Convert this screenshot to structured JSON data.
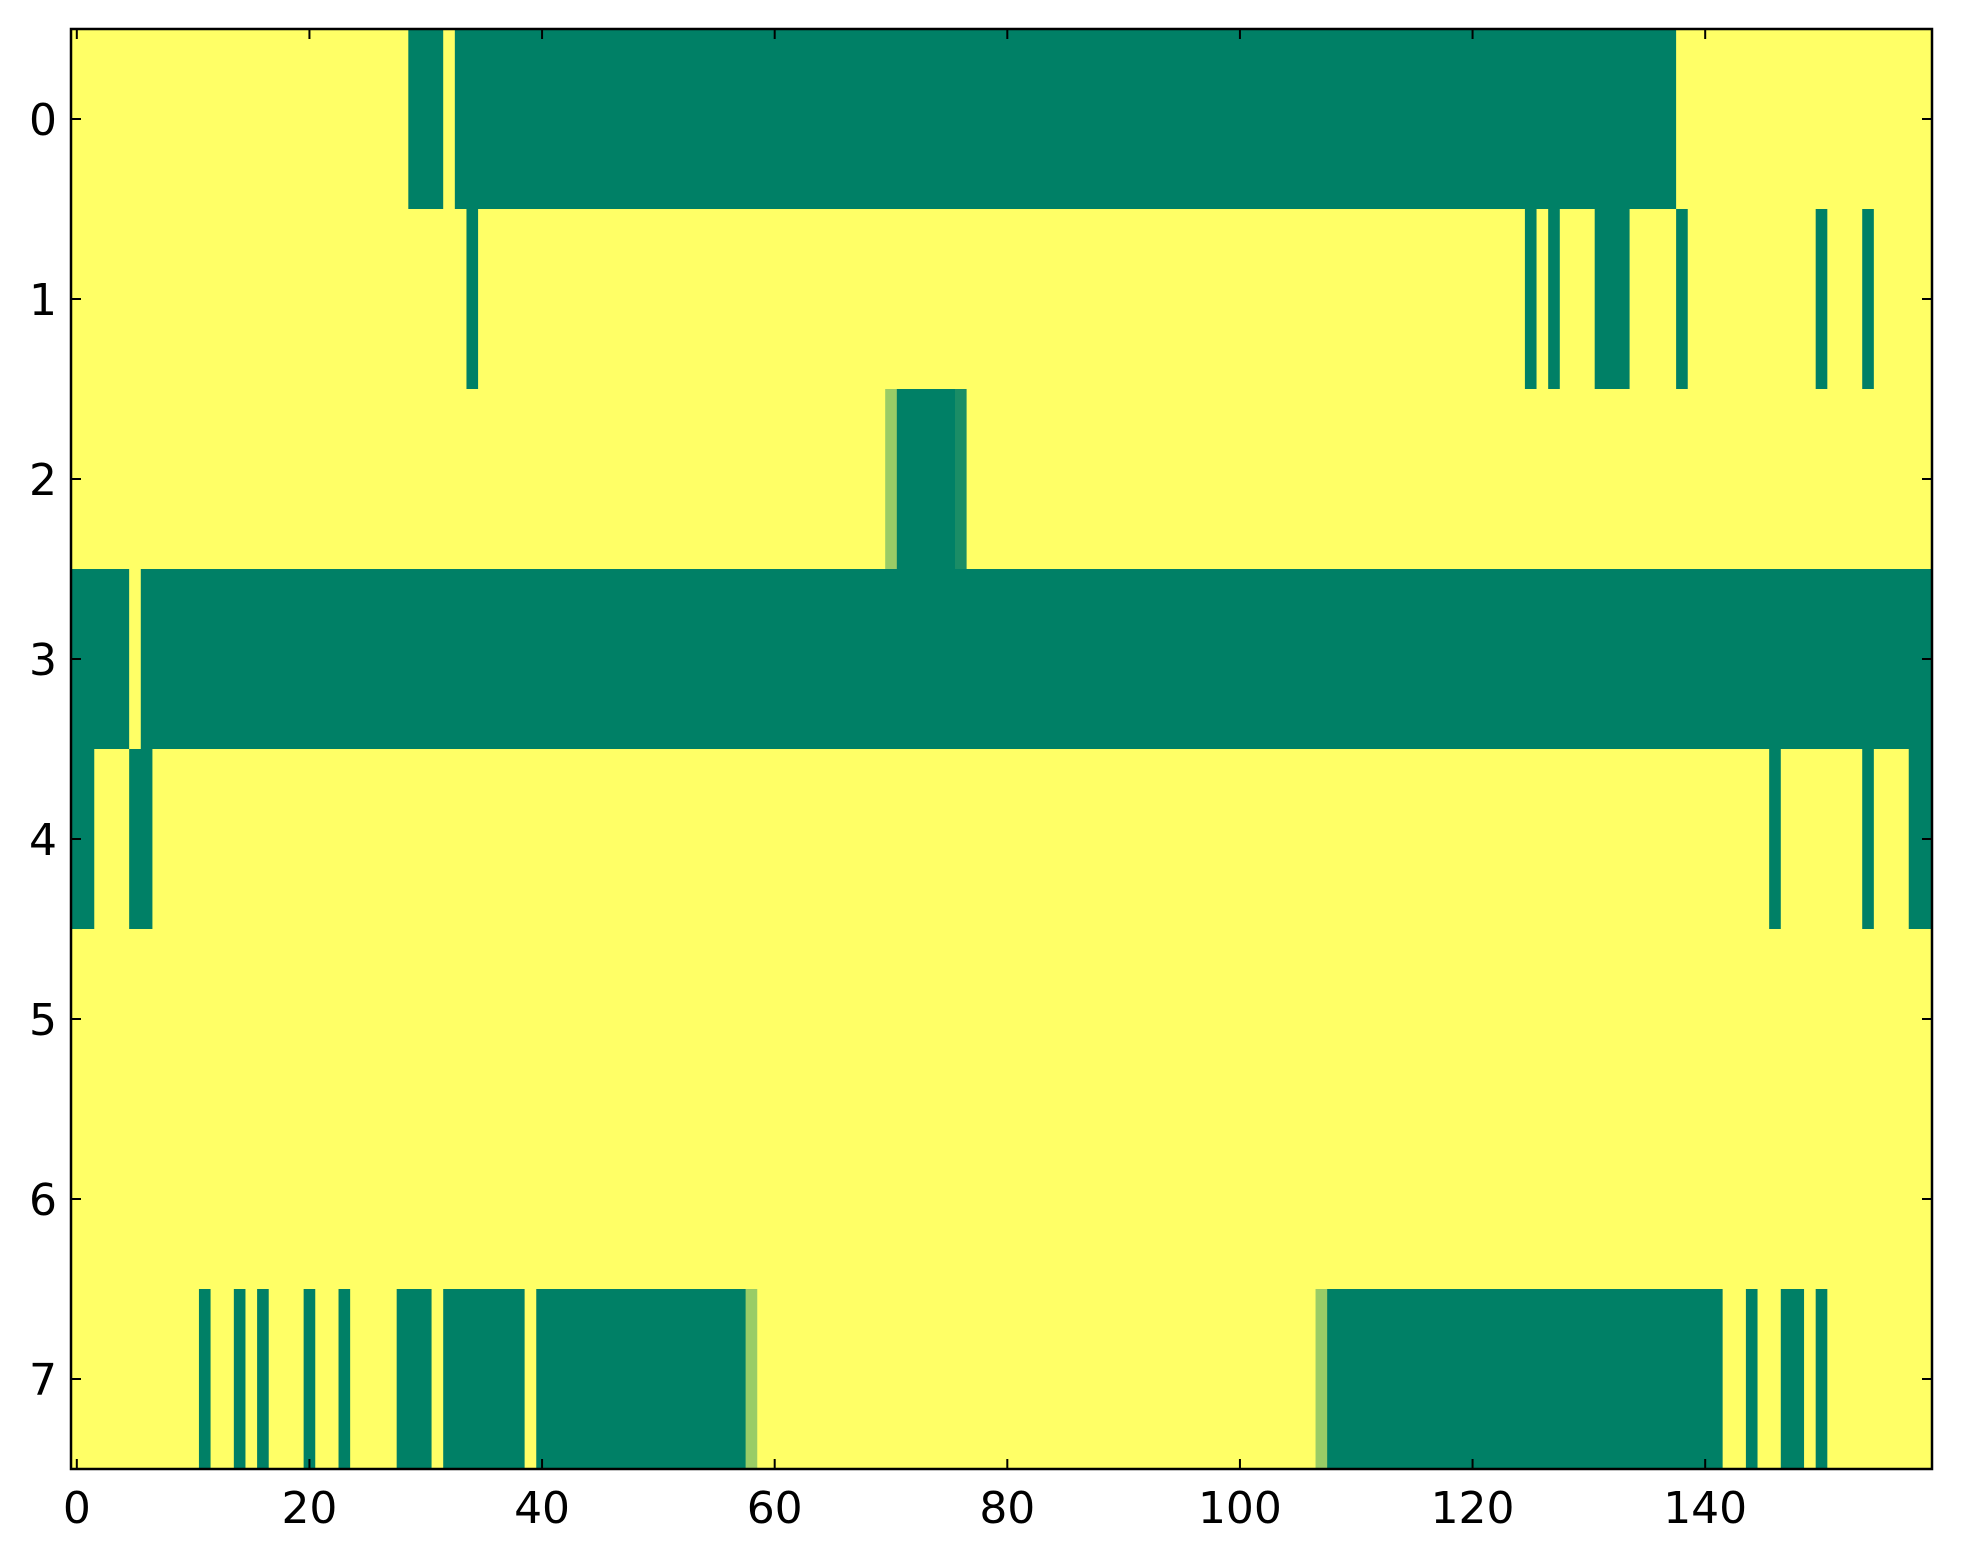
{
  "chart_data": {
    "type": "heatmap",
    "colormap": [
      "#ffff66",
      "#008066"
    ],
    "colorlim": [
      0,
      1
    ],
    "xlim": [
      -0.5,
      159.5
    ],
    "ylim": [
      7.5,
      -0.5
    ],
    "xticks": [
      0,
      20,
      40,
      60,
      80,
      100,
      120,
      140
    ],
    "yticks": [
      0,
      1,
      2,
      3,
      4,
      5,
      6,
      7
    ],
    "values": [
      [
        0,
        0,
        0,
        0,
        0,
        0,
        0,
        0,
        0,
        0,
        0,
        0,
        0,
        0,
        0,
        0,
        0,
        0,
        0,
        0,
        0,
        0,
        0,
        0,
        0,
        0,
        0,
        0,
        0,
        1,
        1,
        1,
        0,
        1,
        1,
        1,
        1,
        1,
        1,
        1,
        1,
        1,
        1,
        1,
        1,
        1,
        1,
        1,
        1,
        1,
        1,
        1,
        1,
        1,
        1,
        1,
        1,
        1,
        1,
        1,
        1,
        1,
        1,
        1,
        1,
        1,
        1,
        1,
        1,
        1,
        1,
        1,
        1,
        1,
        1,
        1,
        1,
        1,
        1,
        1,
        1,
        1,
        1,
        1,
        1,
        1,
        1,
        1,
        1,
        1,
        1,
        1,
        1,
        1,
        1,
        1,
        1,
        1,
        1,
        1,
        1,
        1,
        1,
        1,
        1,
        1,
        1,
        1,
        1,
        1,
        1,
        1,
        1,
        1,
        1,
        1,
        1,
        1,
        1,
        1,
        1,
        1,
        1,
        1,
        1,
        1,
        1,
        1,
        1,
        1,
        1,
        1,
        1,
        1,
        1,
        1,
        1,
        1,
        0,
        0,
        0,
        0,
        0,
        0,
        0,
        0,
        0,
        0,
        0,
        0,
        0,
        0,
        0,
        0,
        0,
        0,
        0,
        0,
        0,
        0
      ],
      [
        0,
        0,
        0,
        0,
        0,
        0,
        0,
        0,
        0,
        0,
        0,
        0,
        0,
        0,
        0,
        0,
        0,
        0,
        0,
        0,
        0,
        0,
        0,
        0,
        0,
        0,
        0,
        0,
        0,
        0,
        0,
        0,
        0,
        0,
        1,
        0,
        0,
        0,
        0,
        0,
        0,
        0,
        0,
        0,
        0,
        0,
        0,
        0,
        0,
        0,
        0,
        0,
        0,
        0,
        0,
        0,
        0,
        0,
        0,
        0,
        0,
        0,
        0,
        0,
        0,
        0,
        0,
        0,
        0,
        0,
        0,
        0,
        0,
        0,
        0,
        0,
        0,
        0,
        0,
        0,
        0,
        0,
        0,
        0,
        0,
        0,
        0,
        0,
        0,
        0,
        0,
        0,
        0,
        0,
        0,
        0,
        0,
        0,
        0,
        0,
        0,
        0,
        0,
        0,
        0,
        0,
        0,
        0,
        0,
        0,
        0,
        0,
        0,
        0,
        0,
        0,
        0,
        0,
        0,
        0,
        0,
        0,
        0,
        0,
        0,
        1,
        0,
        1,
        0,
        0,
        0,
        1,
        1,
        1,
        0,
        0,
        0,
        0,
        1,
        0,
        0,
        0,
        0,
        0,
        0,
        0,
        0,
        0,
        0,
        0,
        1,
        0,
        0,
        0,
        1,
        0,
        0,
        0,
        0,
        0
      ],
      [
        0,
        0,
        0,
        0,
        0,
        0,
        0,
        0,
        0,
        0,
        0,
        0,
        0,
        0,
        0,
        0,
        0,
        0,
        0,
        0,
        0,
        0,
        0,
        0,
        0,
        0,
        0,
        0,
        0,
        0,
        0,
        0,
        0,
        0,
        0,
        0,
        0,
        0,
        0,
        0,
        0,
        0,
        0,
        0,
        0,
        0,
        0,
        0,
        0,
        0,
        0,
        0,
        0,
        0,
        0,
        0,
        0,
        0,
        0,
        0,
        0,
        0,
        0,
        0,
        0,
        0,
        0,
        0,
        0,
        0,
        0.4,
        1,
        1,
        1,
        1,
        1,
        0.9,
        0,
        0,
        0,
        0,
        0,
        0,
        0,
        0,
        0,
        0,
        0,
        0,
        0,
        0,
        0,
        0,
        0,
        0,
        0,
        0,
        0,
        0,
        0,
        0,
        0,
        0,
        0,
        0,
        0,
        0,
        0,
        0,
        0,
        0,
        0,
        0,
        0,
        0,
        0,
        0,
        0,
        0,
        0,
        0,
        0,
        0,
        0,
        0,
        0,
        0,
        0,
        0,
        0,
        0,
        0,
        0,
        0,
        0,
        0,
        0,
        0,
        0,
        0,
        0,
        0,
        0,
        0,
        0,
        0,
        0,
        0,
        0,
        0,
        0,
        0,
        0,
        0,
        0,
        0,
        0,
        0,
        0,
        0
      ],
      [
        1,
        1,
        1,
        1,
        1,
        0,
        1,
        1,
        1,
        1,
        1,
        1,
        1,
        1,
        1,
        1,
        1,
        1,
        1,
        1,
        1,
        1,
        1,
        1,
        1,
        1,
        1,
        1,
        1,
        1,
        1,
        1,
        1,
        1,
        1,
        1,
        1,
        1,
        1,
        1,
        1,
        1,
        1,
        1,
        1,
        1,
        1,
        1,
        1,
        1,
        1,
        1,
        1,
        1,
        1,
        1,
        1,
        1,
        1,
        1,
        1,
        1,
        1,
        1,
        1,
        1,
        1,
        1,
        1,
        1,
        1,
        1,
        1,
        1,
        1,
        1,
        1,
        1,
        1,
        1,
        1,
        1,
        1,
        1,
        1,
        1,
        1,
        1,
        1,
        1,
        1,
        1,
        1,
        1,
        1,
        1,
        1,
        1,
        1,
        1,
        1,
        1,
        1,
        1,
        1,
        1,
        1,
        1,
        1,
        1,
        1,
        1,
        1,
        1,
        1,
        1,
        1,
        1,
        1,
        1,
        1,
        1,
        1,
        1,
        1,
        1,
        1,
        1,
        1,
        1,
        1,
        1,
        1,
        1,
        1,
        1,
        1,
        1,
        1,
        1,
        1,
        1,
        1,
        1,
        1,
        1,
        1,
        1,
        1,
        1,
        1,
        1,
        1,
        1,
        1,
        1,
        1,
        1,
        1,
        1
      ],
      [
        1,
        1,
        0,
        0,
        0,
        1,
        1,
        0,
        0,
        0,
        0,
        0,
        0,
        0,
        0,
        0,
        0,
        0,
        0,
        0,
        0,
        0,
        0,
        0,
        0,
        0,
        0,
        0,
        0,
        0,
        0,
        0,
        0,
        0,
        0,
        0,
        0,
        0,
        0,
        0,
        0,
        0,
        0,
        0,
        0,
        0,
        0,
        0,
        0,
        0,
        0,
        0,
        0,
        0,
        0,
        0,
        0,
        0,
        0,
        0,
        0,
        0,
        0,
        0,
        0,
        0,
        0,
        0,
        0,
        0,
        0,
        0,
        0,
        0,
        0,
        0,
        0,
        0,
        0,
        0,
        0,
        0,
        0,
        0,
        0,
        0,
        0,
        0,
        0,
        0,
        0,
        0,
        0,
        0,
        0,
        0,
        0,
        0,
        0,
        0,
        0,
        0,
        0,
        0,
        0,
        0,
        0,
        0,
        0,
        0,
        0,
        0,
        0,
        0,
        0,
        0,
        0,
        0,
        0,
        0,
        0,
        0,
        0,
        0,
        0,
        0,
        0,
        0,
        0,
        0,
        0,
        0,
        0,
        0,
        0,
        0,
        0,
        0,
        0,
        0,
        0,
        0,
        0,
        0,
        0,
        0,
        1,
        0,
        0,
        0,
        0,
        0,
        0,
        0,
        1,
        0,
        0,
        0,
        1,
        1
      ],
      [
        0,
        0,
        0,
        0,
        0,
        0,
        0,
        0,
        0,
        0,
        0,
        0,
        0,
        0,
        0,
        0,
        0,
        0,
        0,
        0,
        0,
        0,
        0,
        0,
        0,
        0,
        0,
        0,
        0,
        0,
        0,
        0,
        0,
        0,
        0,
        0,
        0,
        0,
        0,
        0,
        0,
        0,
        0,
        0,
        0,
        0,
        0,
        0,
        0,
        0,
        0,
        0,
        0,
        0,
        0,
        0,
        0,
        0,
        0,
        0,
        0,
        0,
        0,
        0,
        0,
        0,
        0,
        0,
        0,
        0,
        0,
        0,
        0,
        0,
        0,
        0,
        0,
        0,
        0,
        0,
        0,
        0,
        0,
        0,
        0,
        0,
        0,
        0,
        0,
        0,
        0,
        0,
        0,
        0,
        0,
        0,
        0,
        0,
        0,
        0,
        0,
        0,
        0,
        0,
        0,
        0,
        0,
        0,
        0,
        0,
        0,
        0,
        0,
        0,
        0,
        0,
        0,
        0,
        0,
        0,
        0,
        0,
        0,
        0,
        0,
        0,
        0,
        0,
        0,
        0,
        0,
        0,
        0,
        0,
        0,
        0,
        0,
        0,
        0,
        0,
        0,
        0,
        0,
        0,
        0,
        0,
        0,
        0,
        0,
        0,
        0,
        0,
        0,
        0,
        0,
        0,
        0,
        0,
        0,
        0
      ],
      [
        0,
        0,
        0,
        0,
        0,
        0,
        0,
        0,
        0,
        0,
        0,
        0,
        0,
        0,
        0,
        0,
        0,
        0,
        0,
        0,
        0,
        0,
        0,
        0,
        0,
        0,
        0,
        0,
        0,
        0,
        0,
        0,
        0,
        0,
        0,
        0,
        0,
        0,
        0,
        0,
        0,
        0,
        0,
        0,
        0,
        0,
        0,
        0,
        0,
        0,
        0,
        0,
        0,
        0,
        0,
        0,
        0,
        0,
        0,
        0,
        0,
        0,
        0,
        0,
        0,
        0,
        0,
        0,
        0,
        0,
        0,
        0,
        0,
        0,
        0,
        0,
        0,
        0,
        0,
        0,
        0,
        0,
        0,
        0,
        0,
        0,
        0,
        0,
        0,
        0,
        0,
        0,
        0,
        0,
        0,
        0,
        0,
        0,
        0,
        0,
        0,
        0,
        0,
        0,
        0,
        0,
        0,
        0,
        0,
        0,
        0,
        0,
        0,
        0,
        0,
        0,
        0,
        0,
        0,
        0,
        0,
        0,
        0,
        0,
        0,
        0,
        0,
        0,
        0,
        0,
        0,
        0,
        0,
        0,
        0,
        0,
        0,
        0,
        0,
        0,
        0,
        0,
        0,
        0,
        0,
        0,
        0,
        0,
        0,
        0,
        0,
        0,
        0,
        0,
        0,
        0,
        0,
        0,
        0,
        0
      ],
      [
        0,
        0,
        0,
        0,
        0,
        0,
        0,
        0,
        0,
        0,
        0,
        1,
        0,
        0,
        1,
        0,
        1,
        0,
        0,
        0,
        1,
        0,
        0,
        1,
        0,
        0,
        0,
        0,
        1,
        1,
        1,
        0,
        1,
        1,
        1,
        1,
        1,
        1,
        1,
        0,
        1,
        1,
        1,
        1,
        1,
        1,
        1,
        1,
        1,
        1,
        1,
        1,
        1,
        1,
        1,
        1,
        1,
        1,
        0.4,
        0,
        0,
        0,
        0,
        0,
        0,
        0,
        0,
        0,
        0,
        0,
        0,
        0,
        0,
        0,
        0,
        0,
        0,
        0,
        0,
        0,
        0,
        0,
        0,
        0,
        0,
        0,
        0,
        0,
        0,
        0,
        0,
        0,
        0,
        0,
        0,
        0,
        0,
        0,
        0,
        0,
        0,
        0,
        0,
        0,
        0,
        0,
        0,
        0.4,
        1,
        1,
        1,
        1,
        1,
        1,
        1,
        1,
        1,
        1,
        1,
        1,
        1,
        1,
        1,
        1,
        1,
        1,
        1,
        1,
        1,
        1,
        1,
        1,
        1,
        1,
        1,
        1,
        1,
        1,
        1,
        1,
        1,
        1,
        0,
        0,
        1,
        0,
        0,
        1,
        1,
        0,
        1,
        0,
        0,
        0,
        0,
        0,
        0,
        0,
        0,
        0
      ]
    ]
  }
}
